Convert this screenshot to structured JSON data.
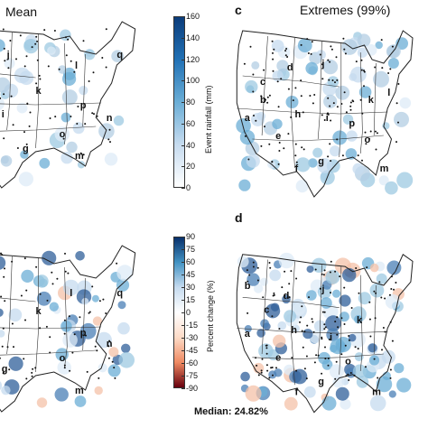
{
  "panels": {
    "tl": {
      "title": "Mean",
      "regions": [
        "j",
        "k",
        "q",
        "p",
        "l",
        "n",
        "i",
        "g",
        "o",
        "m"
      ]
    },
    "tr": {
      "letter": "c",
      "title": "Extremes (99%)",
      "regions": [
        "c",
        "d",
        "j",
        "l",
        "k",
        "a",
        "b",
        "h",
        "i",
        "p",
        "e",
        "f",
        "g",
        "o",
        "m"
      ]
    },
    "bl": {
      "regions": [
        "k",
        "q",
        "p",
        "n",
        "o",
        "g",
        "m",
        "l"
      ]
    },
    "br": {
      "letter": "d",
      "regions": [
        "b",
        "d",
        "j",
        "c",
        "k",
        "a",
        "h",
        "i",
        "e",
        "o",
        "f",
        "g",
        "m"
      ]
    }
  },
  "colorbar_top": {
    "label": "Event rainfall (mm)",
    "ticks": [
      "160",
      "140",
      "120",
      "100",
      "80",
      "60",
      "40",
      "20",
      "0"
    ],
    "colors": [
      "#ffffff",
      "#0b3c7a"
    ]
  },
  "colorbar_bottom": {
    "label": "Percent change (%)",
    "ticks": [
      "90",
      "75",
      "60",
      "45",
      "30",
      "15",
      "0",
      "-15",
      "-30",
      "-45",
      "-60",
      "-75",
      "-90"
    ],
    "colors": [
      "#08306b",
      "#ffffff",
      "#67000d"
    ]
  },
  "median_text": "Median: 24.82%"
}
